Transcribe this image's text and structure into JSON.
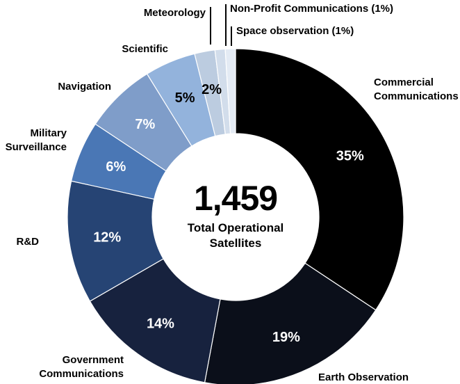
{
  "chart_data": {
    "type": "pie",
    "donut": true,
    "center_total": "1,459",
    "center_label": [
      "Total Operational",
      "Satellites"
    ],
    "slices": [
      {
        "name": "Commercial Communications",
        "value": 35,
        "label": "35%",
        "color": "#000000",
        "text_color": "#ffffff"
      },
      {
        "name": "Earth Observation",
        "value": 19,
        "label": "19%",
        "color": "#0b0f1a",
        "text_color": "#ffffff"
      },
      {
        "name": "Government Communications",
        "value": 14,
        "label": "14%",
        "color": "#17223e",
        "text_color": "#ffffff"
      },
      {
        "name": "R&D",
        "value": 12,
        "label": "12%",
        "color": "#264474",
        "text_color": "#ffffff"
      },
      {
        "name": "Military Surveillance",
        "value": 6,
        "label": "6%",
        "color": "#4a77b5",
        "text_color": "#ffffff"
      },
      {
        "name": "Navigation",
        "value": 7,
        "label": "7%",
        "color": "#7f9dc9",
        "text_color": "#ffffff"
      },
      {
        "name": "Scientific",
        "value": 5,
        "label": "5%",
        "color": "#93b3dc",
        "text_color": "#000000"
      },
      {
        "name": "Meteorology",
        "value": 2,
        "label": "2%",
        "color": "#bccce0",
        "text_color": "#000000"
      },
      {
        "name": "Non-Profit Communications (1%)",
        "value": 1,
        "label": "",
        "color": "#d2ddeb",
        "text_color": "#000000"
      },
      {
        "name": "Space observation (1%)",
        "value": 1,
        "label": "",
        "color": "#e4ebf4",
        "text_color": "#000000"
      }
    ]
  }
}
